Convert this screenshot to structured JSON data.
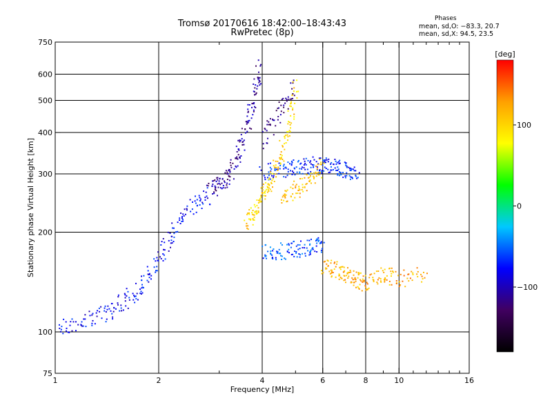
{
  "header": {
    "title_line1": "Tromsø 20170616 18:42:00–18:43:43",
    "title_line2": "RwPretec (8p)",
    "stats_heading": "Phases",
    "stats_o": "mean, sd,O: −83.3, 20.7",
    "stats_x": "mean, sd,X:  94.5, 23.5"
  },
  "chart_data": {
    "type": "scatter",
    "title": "Tromsø 20170616 18:42:00–18:43:43",
    "subtitle": "RwPretec (8p)",
    "xlabel": "Frequency [MHz]",
    "ylabel": "Stationary phase Virtual Height [km]",
    "x_scale": "log",
    "y_scale": "log",
    "xlim": [
      1,
      16
    ],
    "ylim": [
      75,
      750
    ],
    "x_ticks": [
      1,
      2,
      4,
      6,
      8,
      10,
      16
    ],
    "x_tick_labels": [
      "1",
      "2",
      "4",
      "6",
      "8",
      "10",
      "16"
    ],
    "x_minor_ticks": [
      3,
      5,
      7,
      9,
      11,
      12,
      13,
      14,
      15
    ],
    "y_ticks": [
      75,
      100,
      200,
      300,
      400,
      500,
      600,
      750
    ],
    "y_tick_labels": [
      "75",
      "100",
      "200",
      "300",
      "400",
      "500",
      "600",
      "750"
    ],
    "grid": true,
    "colorbar": {
      "label": "[deg]",
      "range": [
        -180,
        180
      ],
      "ticks": [
        100,
        0,
        -100
      ],
      "tick_labels": [
        "100",
        "0",
        "−100"
      ],
      "colors": [
        "#000000",
        "#400060",
        "#0000ff",
        "#00c8ff",
        "#00ff00",
        "#ffff00",
        "#ffa000",
        "#ff0000"
      ]
    },
    "series": [
      {
        "name": "O",
        "phase_deg": -83.3,
        "phase_sd": 20.7,
        "traces": [
          {
            "phase": -80,
            "x": [
              1.0,
              1.2,
              1.4,
              1.6,
              1.8,
              2.0,
              2.2,
              2.5,
              2.8
            ],
            "y": [
              103,
              108,
              115,
              125,
              140,
              165,
              205,
              240,
              260
            ]
          },
          {
            "phase": -110,
            "x": [
              2.8,
              3.0,
              3.2,
              3.4,
              3.6,
              3.8,
              3.9
            ],
            "y": [
              270,
              280,
              300,
              340,
              420,
              520,
              640
            ]
          },
          {
            "phase": -70,
            "x": [
              4.0,
              4.5,
              5.0,
              5.5,
              6.0,
              6.5,
              7.0,
              7.5
            ],
            "y": [
              305,
              310,
              315,
              320,
              320,
              315,
              310,
              300
            ]
          },
          {
            "phase": -60,
            "x": [
              4.0,
              4.5,
              5.0,
              5.5,
              6.0
            ],
            "y": [
              175,
              176,
              178,
              180,
              185
            ]
          },
          {
            "phase": -120,
            "x": [
              4.0,
              4.5,
              4.9
            ],
            "y": [
              380,
              460,
              560
            ]
          }
        ]
      },
      {
        "name": "X",
        "phase_deg": 94.5,
        "phase_sd": 23.5,
        "traces": [
          {
            "phase": 100,
            "x": [
              3.6,
              3.8,
              4.0,
              4.2,
              4.5,
              4.8,
              5.0
            ],
            "y": [
              215,
              230,
              260,
              290,
              340,
              420,
              560
            ]
          },
          {
            "phase": 110,
            "x": [
              4.5,
              5.0,
              5.5,
              6.0
            ],
            "y": [
              255,
              270,
              290,
              320
            ]
          },
          {
            "phase": 120,
            "x": [
              6.0,
              6.5,
              7.0,
              7.5,
              8.0,
              9.0,
              10.0,
              12.0
            ],
            "y": [
              160,
              155,
              150,
              145,
              140,
              150,
              145,
              150
            ]
          }
        ]
      }
    ]
  }
}
